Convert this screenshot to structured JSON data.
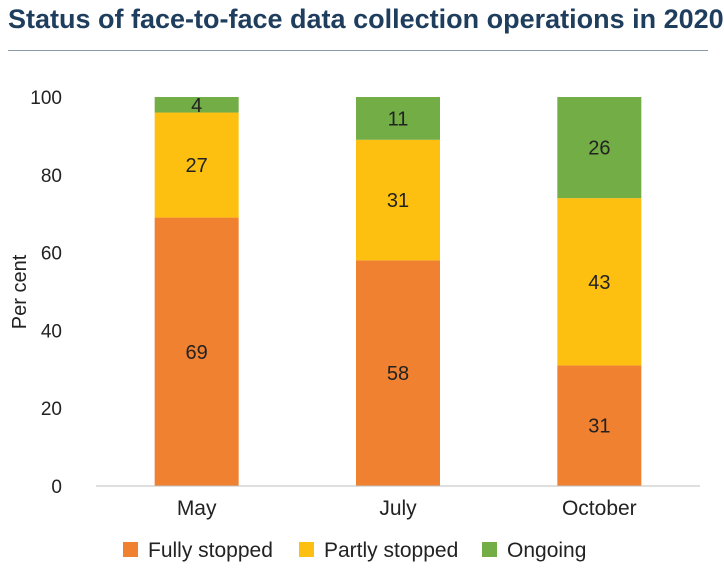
{
  "chart_data": {
    "type": "bar",
    "stacked": true,
    "title": "Status of face-to-face data collection operations in 2020",
    "ylabel": "Per cent",
    "xlabel": "",
    "ylim": [
      0,
      100
    ],
    "yticks": [
      0,
      20,
      40,
      60,
      80,
      100
    ],
    "categories": [
      "May",
      "July",
      "October"
    ],
    "series": [
      {
        "name": "Fully stopped",
        "color": "#ef8131",
        "values": [
          69,
          58,
          31
        ]
      },
      {
        "name": "Partly stopped",
        "color": "#fdc010",
        "values": [
          27,
          31,
          43
        ]
      },
      {
        "name": "Ongoing",
        "color": "#72ad45",
        "values": [
          4,
          11,
          26
        ]
      }
    ],
    "legend_position": "bottom",
    "grid": false
  }
}
